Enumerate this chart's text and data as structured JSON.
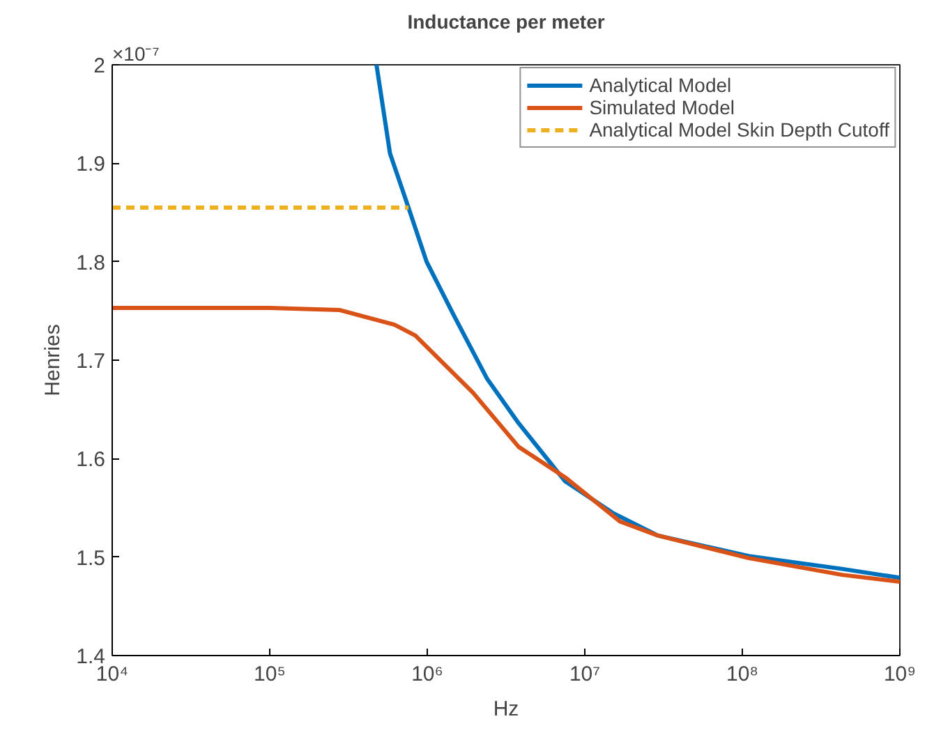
{
  "chart_data": {
    "type": "line",
    "title": "Inductance per meter",
    "xlabel": "Hz",
    "ylabel": "Henries",
    "annotations": [
      "×10⁻⁷"
    ],
    "log": "x",
    "grid": false,
    "legend": "top right",
    "xlim": [
      10000,
      1000000000
    ],
    "ylim": [
      1.4,
      2.0
    ],
    "xticks": [
      {
        "value": 10000,
        "label": "10⁴"
      },
      {
        "value": 100000,
        "label": "10⁵"
      },
      {
        "value": 1000000,
        "label": "10⁶"
      },
      {
        "value": 10000000,
        "label": "10⁷"
      },
      {
        "value": 100000000,
        "label": "10⁸"
      },
      {
        "value": 1000000000,
        "label": "10⁹"
      }
    ],
    "yticks": [
      1.4,
      1.5,
      1.6,
      1.7,
      1.8,
      1.9,
      2
    ],
    "series": [
      {
        "name": "Analytical Model",
        "color": "#0072bd",
        "line_style": "solid",
        "x": [
          476000,
          580000,
          760000,
          990000,
          1480000,
          2400000,
          3800000,
          7500000,
          15000000,
          29000000,
          110000000,
          430000000,
          1000000000
        ],
        "values": [
          2.0,
          1.91,
          1.855,
          1.8,
          1.745,
          1.681,
          1.636,
          1.577,
          1.545,
          1.522,
          1.501,
          1.488,
          1.479
        ]
      },
      {
        "name": "Simulated Model",
        "color": "#d95319",
        "line_style": "solid",
        "x": [
          10000,
          100000,
          276000,
          620000,
          840000,
          1140000,
          1950000,
          3800000,
          7500000,
          16800000,
          29000000,
          110000000,
          430000000,
          1000000000
        ],
        "values": [
          1.753,
          1.753,
          1.751,
          1.736,
          1.725,
          1.704,
          1.667,
          1.612,
          1.581,
          1.536,
          1.522,
          1.499,
          1.482,
          1.475
        ]
      },
      {
        "name": "Analytical Model Skin Depth Cutoff",
        "color": "#edb120",
        "line_style": "dashed",
        "x": [
          10000,
          760000
        ],
        "values": [
          1.855,
          1.855
        ]
      }
    ]
  }
}
